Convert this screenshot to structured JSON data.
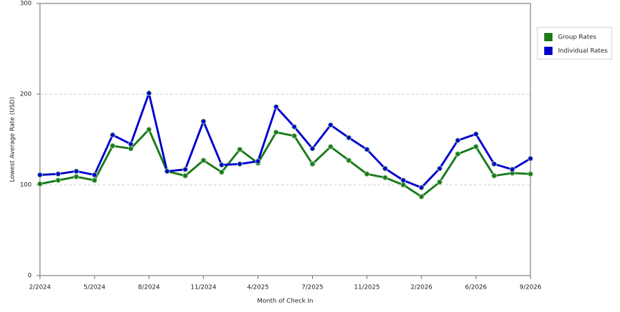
{
  "chart_data": {
    "type": "line",
    "x_label": "Month of Check In",
    "y_label": "Lowest Average Rate (USD)",
    "categories": [
      "2/2024",
      null,
      null,
      "5/2024",
      null,
      null,
      "8/2024",
      null,
      null,
      "11/2024",
      null,
      null,
      "4/2025",
      null,
      null,
      "7/2025",
      null,
      null,
      "11/2025",
      null,
      null,
      "2/2026",
      null,
      null,
      "6/2026",
      null,
      null,
      "9/2026"
    ],
    "series": [
      {
        "name": "Group Rates",
        "color": "#1a7a1a",
        "values": [
          101,
          105,
          109,
          105,
          143,
          140,
          161,
          115,
          110,
          127,
          114,
          139,
          124,
          158,
          154,
          123,
          142,
          127,
          112,
          108,
          100,
          87,
          103,
          134,
          142,
          110,
          113,
          112
        ]
      },
      {
        "name": "Individual Rates",
        "color": "#0000cc",
        "values": [
          111,
          112,
          115,
          111,
          155,
          145,
          201,
          115,
          117,
          170,
          122,
          123,
          126,
          186,
          164,
          140,
          166,
          152,
          139,
          118,
          105,
          97,
          118,
          149,
          156,
          123,
          117,
          129
        ]
      }
    ],
    "ylim": [
      0,
      300
    ],
    "yticks": [
      0,
      100,
      200,
      300
    ],
    "grid": true,
    "legend": "right"
  }
}
